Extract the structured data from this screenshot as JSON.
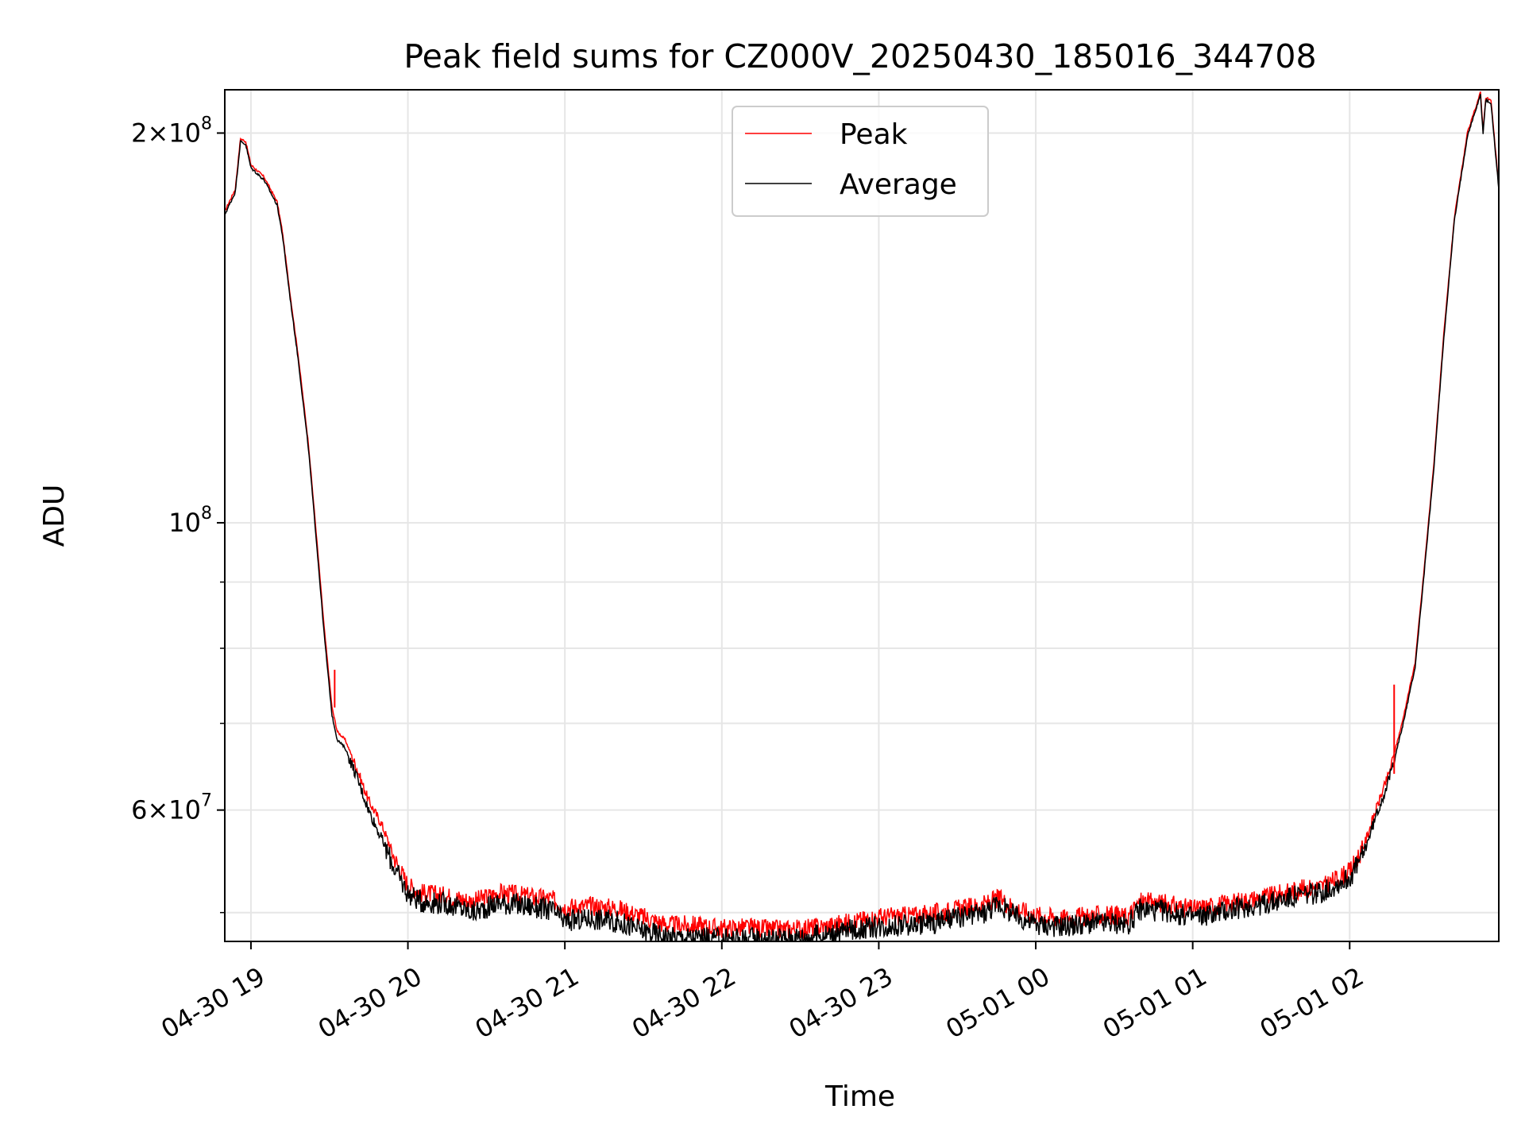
{
  "chart_data": {
    "type": "line",
    "title": "Peak field sums for CZ000V_20250430_185016_344708",
    "xlabel": "Time",
    "ylabel": "ADU",
    "y_scale": "log",
    "grid": true,
    "legend_position": "top-center",
    "x_range": [
      "2025-04-30 18:50",
      "2025-05-01 02:57"
    ],
    "ylim": [
      47500000,
      216000000
    ],
    "x_ticks": [
      {
        "t": "2025-04-30 19:00",
        "label": "04-30 19"
      },
      {
        "t": "2025-04-30 20:00",
        "label": "04-30 20"
      },
      {
        "t": "2025-04-30 21:00",
        "label": "04-30 21"
      },
      {
        "t": "2025-04-30 22:00",
        "label": "04-30 22"
      },
      {
        "t": "2025-04-30 23:00",
        "label": "04-30 23"
      },
      {
        "t": "2025-05-01 00:00",
        "label": "05-01 00"
      },
      {
        "t": "2025-05-01 01:00",
        "label": "05-01 01"
      },
      {
        "t": "2025-05-01 02:00",
        "label": "05-01 02"
      }
    ],
    "y_major_ticks": [
      {
        "value": 200000000,
        "mantissa": "2",
        "base": "×10",
        "exp": "8"
      },
      {
        "value": 100000000,
        "mantissa": "",
        "base": "10",
        "exp": "8"
      },
      {
        "value": 60000000,
        "mantissa": "6",
        "base": "×10",
        "exp": "7"
      }
    ],
    "y_minor_ticks": [
      50000000,
      70000000,
      80000000,
      90000000
    ],
    "series": [
      {
        "name": "Peak",
        "color": "#ff0000",
        "values": [
          [
            "2025-04-30 18:50",
            174000000
          ],
          [
            "2025-04-30 18:54",
            181000000
          ],
          [
            "2025-04-30 18:56",
            198000000
          ],
          [
            "2025-04-30 18:58",
            197000000
          ],
          [
            "2025-04-30 19:00",
            189000000
          ],
          [
            "2025-04-30 19:05",
            185000000
          ],
          [
            "2025-04-30 19:10",
            177000000
          ],
          [
            "2025-04-30 19:12",
            168000000
          ],
          [
            "2025-04-30 19:15",
            150000000
          ],
          [
            "2025-04-30 19:18",
            135000000
          ],
          [
            "2025-04-30 19:22",
            115000000
          ],
          [
            "2025-04-30 19:25",
            98000000
          ],
          [
            "2025-04-30 19:28",
            83000000
          ],
          [
            "2025-04-30 19:31",
            72000000
          ],
          [
            "2025-04-30 19:33",
            69000000
          ],
          [
            "2025-04-30 19:36",
            68000000
          ],
          [
            "2025-04-30 19:40",
            65000000
          ],
          [
            "2025-04-30 19:45",
            61000000
          ],
          [
            "2025-04-30 19:50",
            58500000
          ],
          [
            "2025-04-30 19:55",
            55000000
          ],
          [
            "2025-04-30 20:00",
            52500000
          ],
          [
            "2025-04-30 20:05",
            51800000
          ],
          [
            "2025-04-30 20:15",
            51500000
          ],
          [
            "2025-04-30 20:25",
            51000000
          ],
          [
            "2025-04-30 20:35",
            51800000
          ],
          [
            "2025-04-30 20:45",
            51500000
          ],
          [
            "2025-04-30 20:55",
            51200000
          ],
          [
            "2025-04-30 21:00",
            50500000
          ],
          [
            "2025-04-30 21:10",
            50600000
          ],
          [
            "2025-04-30 21:20",
            50400000
          ],
          [
            "2025-04-30 21:30",
            49600000
          ],
          [
            "2025-04-30 21:40",
            48900000
          ],
          [
            "2025-04-30 21:50",
            48900000
          ],
          [
            "2025-04-30 22:00",
            48600000
          ],
          [
            "2025-04-30 22:10",
            48700000
          ],
          [
            "2025-04-30 22:20",
            48500000
          ],
          [
            "2025-04-30 22:30",
            48600000
          ],
          [
            "2025-04-30 22:40",
            48800000
          ],
          [
            "2025-04-30 22:50",
            49200000
          ],
          [
            "2025-04-30 23:00",
            49600000
          ],
          [
            "2025-04-30 23:10",
            49700000
          ],
          [
            "2025-04-30 23:20",
            49900000
          ],
          [
            "2025-04-30 23:30",
            50300000
          ],
          [
            "2025-04-30 23:40",
            50700000
          ],
          [
            "2025-04-30 23:46",
            51300000
          ],
          [
            "2025-04-30 23:52",
            50400000
          ],
          [
            "2025-05-01 00:00",
            49800000
          ],
          [
            "2025-05-01 00:10",
            49500000
          ],
          [
            "2025-05-01 00:20",
            49700000
          ],
          [
            "2025-05-01 00:30",
            49800000
          ],
          [
            "2025-05-01 00:35",
            49600000
          ],
          [
            "2025-05-01 00:40",
            51000000
          ],
          [
            "2025-05-01 00:50",
            50800000
          ],
          [
            "2025-05-01 01:00",
            50300000
          ],
          [
            "2025-05-01 01:10",
            50700000
          ],
          [
            "2025-05-01 01:20",
            51100000
          ],
          [
            "2025-05-01 01:30",
            51500000
          ],
          [
            "2025-05-01 01:40",
            52100000
          ],
          [
            "2025-05-01 01:50",
            52400000
          ],
          [
            "2025-05-01 02:00",
            53800000
          ],
          [
            "2025-05-01 02:05",
            56000000
          ],
          [
            "2025-05-01 02:10",
            60000000
          ],
          [
            "2025-05-01 02:15",
            64000000
          ],
          [
            "2025-05-01 02:20",
            70000000
          ],
          [
            "2025-05-01 02:25",
            78000000
          ],
          [
            "2025-05-01 02:28",
            90000000
          ],
          [
            "2025-05-01 02:32",
            110000000
          ],
          [
            "2025-05-01 02:36",
            140000000
          ],
          [
            "2025-05-01 02:40",
            172000000
          ],
          [
            "2025-05-01 02:45",
            200000000
          ],
          [
            "2025-05-01 02:50",
            215000000
          ],
          [
            "2025-05-01 02:51",
            201000000
          ],
          [
            "2025-05-01 02:52",
            213000000
          ],
          [
            "2025-05-01 02:54",
            212000000
          ],
          [
            "2025-05-01 02:57",
            182000000
          ]
        ]
      },
      {
        "name": "Average",
        "color": "#000000",
        "values": [
          [
            "2025-04-30 18:50",
            173000000
          ],
          [
            "2025-04-30 18:54",
            180000000
          ],
          [
            "2025-04-30 18:56",
            197000000
          ],
          [
            "2025-04-30 18:58",
            196000000
          ],
          [
            "2025-04-30 19:00",
            188000000
          ],
          [
            "2025-04-30 19:05",
            184000000
          ],
          [
            "2025-04-30 19:10",
            176000000
          ],
          [
            "2025-04-30 19:12",
            167000000
          ],
          [
            "2025-04-30 19:15",
            149000000
          ],
          [
            "2025-04-30 19:18",
            134000000
          ],
          [
            "2025-04-30 19:22",
            114000000
          ],
          [
            "2025-04-30 19:25",
            97000000
          ],
          [
            "2025-04-30 19:28",
            82000000
          ],
          [
            "2025-04-30 19:31",
            71000000
          ],
          [
            "2025-04-30 19:33",
            68000000
          ],
          [
            "2025-04-30 19:36",
            67000000
          ],
          [
            "2025-04-30 19:40",
            64000000
          ],
          [
            "2025-04-30 19:45",
            60000000
          ],
          [
            "2025-04-30 19:50",
            57000000
          ],
          [
            "2025-04-30 19:55",
            54000000
          ],
          [
            "2025-04-30 20:00",
            51700000
          ],
          [
            "2025-04-30 20:05",
            51000000
          ],
          [
            "2025-04-30 20:15",
            50800000
          ],
          [
            "2025-04-30 20:25",
            50000000
          ],
          [
            "2025-04-30 20:35",
            50900000
          ],
          [
            "2025-04-30 20:45",
            50600000
          ],
          [
            "2025-04-30 20:55",
            50200000
          ],
          [
            "2025-04-30 21:00",
            49200000
          ],
          [
            "2025-04-30 21:10",
            49500000
          ],
          [
            "2025-04-30 21:20",
            49200000
          ],
          [
            "2025-04-30 21:30",
            48400000
          ],
          [
            "2025-04-30 21:40",
            47900000
          ],
          [
            "2025-04-30 21:50",
            47800000
          ],
          [
            "2025-04-30 22:00",
            47700000
          ],
          [
            "2025-04-30 22:10",
            47800000
          ],
          [
            "2025-04-30 22:20",
            47700000
          ],
          [
            "2025-04-30 22:30",
            47900000
          ],
          [
            "2025-04-30 22:40",
            48100000
          ],
          [
            "2025-04-30 22:50",
            48500000
          ],
          [
            "2025-04-30 23:00",
            48800000
          ],
          [
            "2025-04-30 23:10",
            48900000
          ],
          [
            "2025-04-30 23:20",
            49100000
          ],
          [
            "2025-04-30 23:30",
            49500000
          ],
          [
            "2025-04-30 23:40",
            50000000
          ],
          [
            "2025-04-30 23:46",
            50800000
          ],
          [
            "2025-04-30 23:52",
            49700000
          ],
          [
            "2025-05-01 00:00",
            49000000
          ],
          [
            "2025-05-01 00:10",
            48800000
          ],
          [
            "2025-05-01 00:20",
            49000000
          ],
          [
            "2025-05-01 00:30",
            49100000
          ],
          [
            "2025-05-01 00:35",
            48900000
          ],
          [
            "2025-05-01 00:40",
            50300000
          ],
          [
            "2025-05-01 00:50",
            50100000
          ],
          [
            "2025-05-01 01:00",
            49600000
          ],
          [
            "2025-05-01 01:10",
            50000000
          ],
          [
            "2025-05-01 01:20",
            50500000
          ],
          [
            "2025-05-01 01:30",
            50900000
          ],
          [
            "2025-05-01 01:40",
            51500000
          ],
          [
            "2025-05-01 01:50",
            51900000
          ],
          [
            "2025-05-01 02:00",
            53200000
          ],
          [
            "2025-05-01 02:05",
            55300000
          ],
          [
            "2025-05-01 02:10",
            59300000
          ],
          [
            "2025-05-01 02:15",
            63300000
          ],
          [
            "2025-05-01 02:20",
            69300000
          ],
          [
            "2025-05-01 02:25",
            77300000
          ],
          [
            "2025-05-01 02:28",
            89300000
          ],
          [
            "2025-05-01 02:32",
            109000000
          ],
          [
            "2025-05-01 02:36",
            139000000
          ],
          [
            "2025-05-01 02:40",
            171000000
          ],
          [
            "2025-05-01 02:45",
            199000000
          ],
          [
            "2025-05-01 02:50",
            214000000
          ],
          [
            "2025-05-01 02:51",
            200000000
          ],
          [
            "2025-05-01 02:52",
            212000000
          ],
          [
            "2025-05-01 02:54",
            211000000
          ],
          [
            "2025-05-01 02:57",
            181000000
          ]
        ]
      }
    ],
    "annotations": [
      {
        "series": "Peak",
        "t": "2025-04-30 19:32",
        "value": 77000000,
        "note": "spike"
      },
      {
        "series": "Peak",
        "t": "2025-05-01 02:17",
        "value": 75000000,
        "note": "spike"
      }
    ]
  }
}
